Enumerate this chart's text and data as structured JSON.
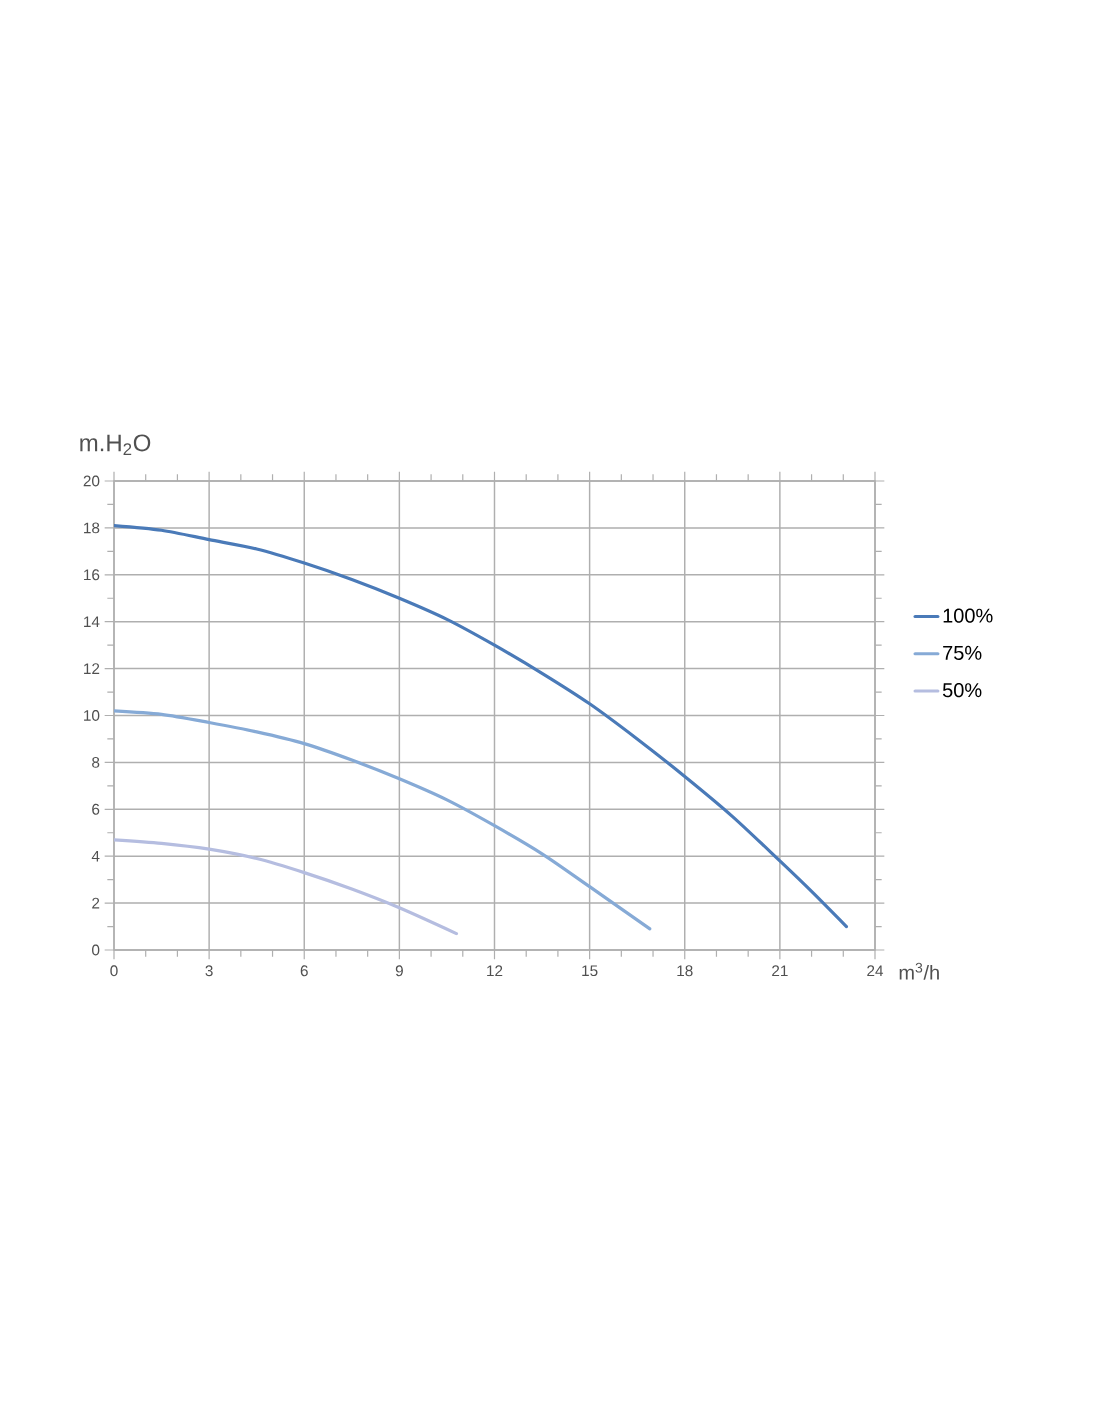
{
  "chart_data": {
    "type": "line",
    "xlabel": "m$^{3}$/h",
    "ylabel": "m.H$_{2}$O",
    "xlim": [
      0,
      24
    ],
    "ylim": [
      0,
      20
    ],
    "xticks": [
      0,
      3,
      6,
      9,
      12,
      15,
      18,
      21,
      24
    ],
    "yticks": [
      0,
      2,
      4,
      6,
      8,
      10,
      12,
      14,
      16,
      18,
      20
    ],
    "grid": true,
    "legend": "right",
    "marker": "none",
    "line_style": "solid",
    "series": [
      {
        "name": "100%",
        "color": "#4a7ab8",
        "x": [
          0,
          1.5,
          3,
          4.5,
          6,
          7.5,
          9,
          10.5,
          12,
          13.5,
          15,
          16.5,
          18,
          19.5,
          21,
          22,
          23.1
        ],
        "values": [
          18.1,
          17.9,
          17.5,
          17.1,
          16.5,
          15.8,
          15.0,
          14.1,
          13.0,
          11.8,
          10.5,
          9.0,
          7.4,
          5.7,
          3.8,
          2.5,
          1.0
        ]
      },
      {
        "name": "75%",
        "color": "#86aad6",
        "x": [
          0,
          1.5,
          3,
          4.5,
          6,
          7.5,
          9,
          10.5,
          12,
          13.5,
          15,
          16.9
        ],
        "values": [
          10.2,
          10.05,
          9.7,
          9.3,
          8.8,
          8.1,
          7.3,
          6.4,
          5.3,
          4.1,
          2.7,
          0.9
        ]
      },
      {
        "name": "50%",
        "color": "#b5bde0",
        "x": [
          0,
          1.5,
          3,
          4.5,
          6,
          7.5,
          9,
          10.8
        ],
        "values": [
          4.7,
          4.55,
          4.3,
          3.9,
          3.3,
          2.6,
          1.8,
          0.7
        ]
      }
    ]
  }
}
